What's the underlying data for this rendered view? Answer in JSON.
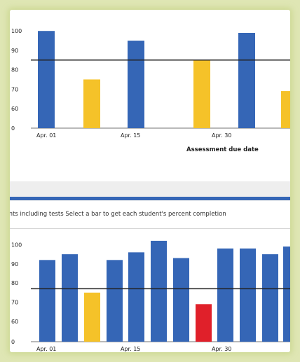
{
  "colors": {
    "accent_blue": "#3566b6",
    "below_target_yellow": "#f5c229",
    "alert_red": "#e0202a",
    "target_line": "#222222",
    "page_background": "#dfe6b4"
  },
  "instruction_text": "nents including tests Select a bar to get each student's percent completion",
  "chart_data": [
    {
      "type": "bar",
      "title": "",
      "xlabel": "Assessment due date",
      "ylabel": "",
      "ylim": [
        0,
        100
      ],
      "yticks": [
        0,
        60,
        70,
        80,
        90,
        100
      ],
      "xtick_labels": [
        "Apr. 01",
        "Apr. 15",
        "Apr. 30"
      ],
      "target_line": 85,
      "bars": [
        {
          "value": 100,
          "color": "blue"
        },
        {
          "value": 75,
          "color": "yellow"
        },
        {
          "value": 95,
          "color": "blue"
        },
        {
          "value": 85,
          "color": "yellow"
        },
        {
          "value": 99,
          "color": "blue"
        },
        {
          "value": 69,
          "color": "yellow"
        }
      ]
    },
    {
      "type": "bar",
      "title": "",
      "xlabel": "",
      "ylabel": "",
      "ylim": [
        0,
        100
      ],
      "yticks": [
        0,
        60,
        70,
        80,
        90,
        100
      ],
      "xtick_labels": [
        "Apr. 01",
        "Apr. 15",
        "Apr. 30"
      ],
      "target_line": 77,
      "bars": [
        {
          "value": 92,
          "color": "blue"
        },
        {
          "value": 95,
          "color": "blue"
        },
        {
          "value": 75,
          "color": "yellow"
        },
        {
          "value": 92,
          "color": "blue"
        },
        {
          "value": 96,
          "color": "blue"
        },
        {
          "value": 102,
          "color": "blue"
        },
        {
          "value": 93,
          "color": "blue"
        },
        {
          "value": 69,
          "color": "red"
        },
        {
          "value": 98,
          "color": "blue"
        },
        {
          "value": 98,
          "color": "blue"
        },
        {
          "value": 95,
          "color": "blue"
        },
        {
          "value": 99,
          "color": "blue"
        }
      ]
    }
  ]
}
